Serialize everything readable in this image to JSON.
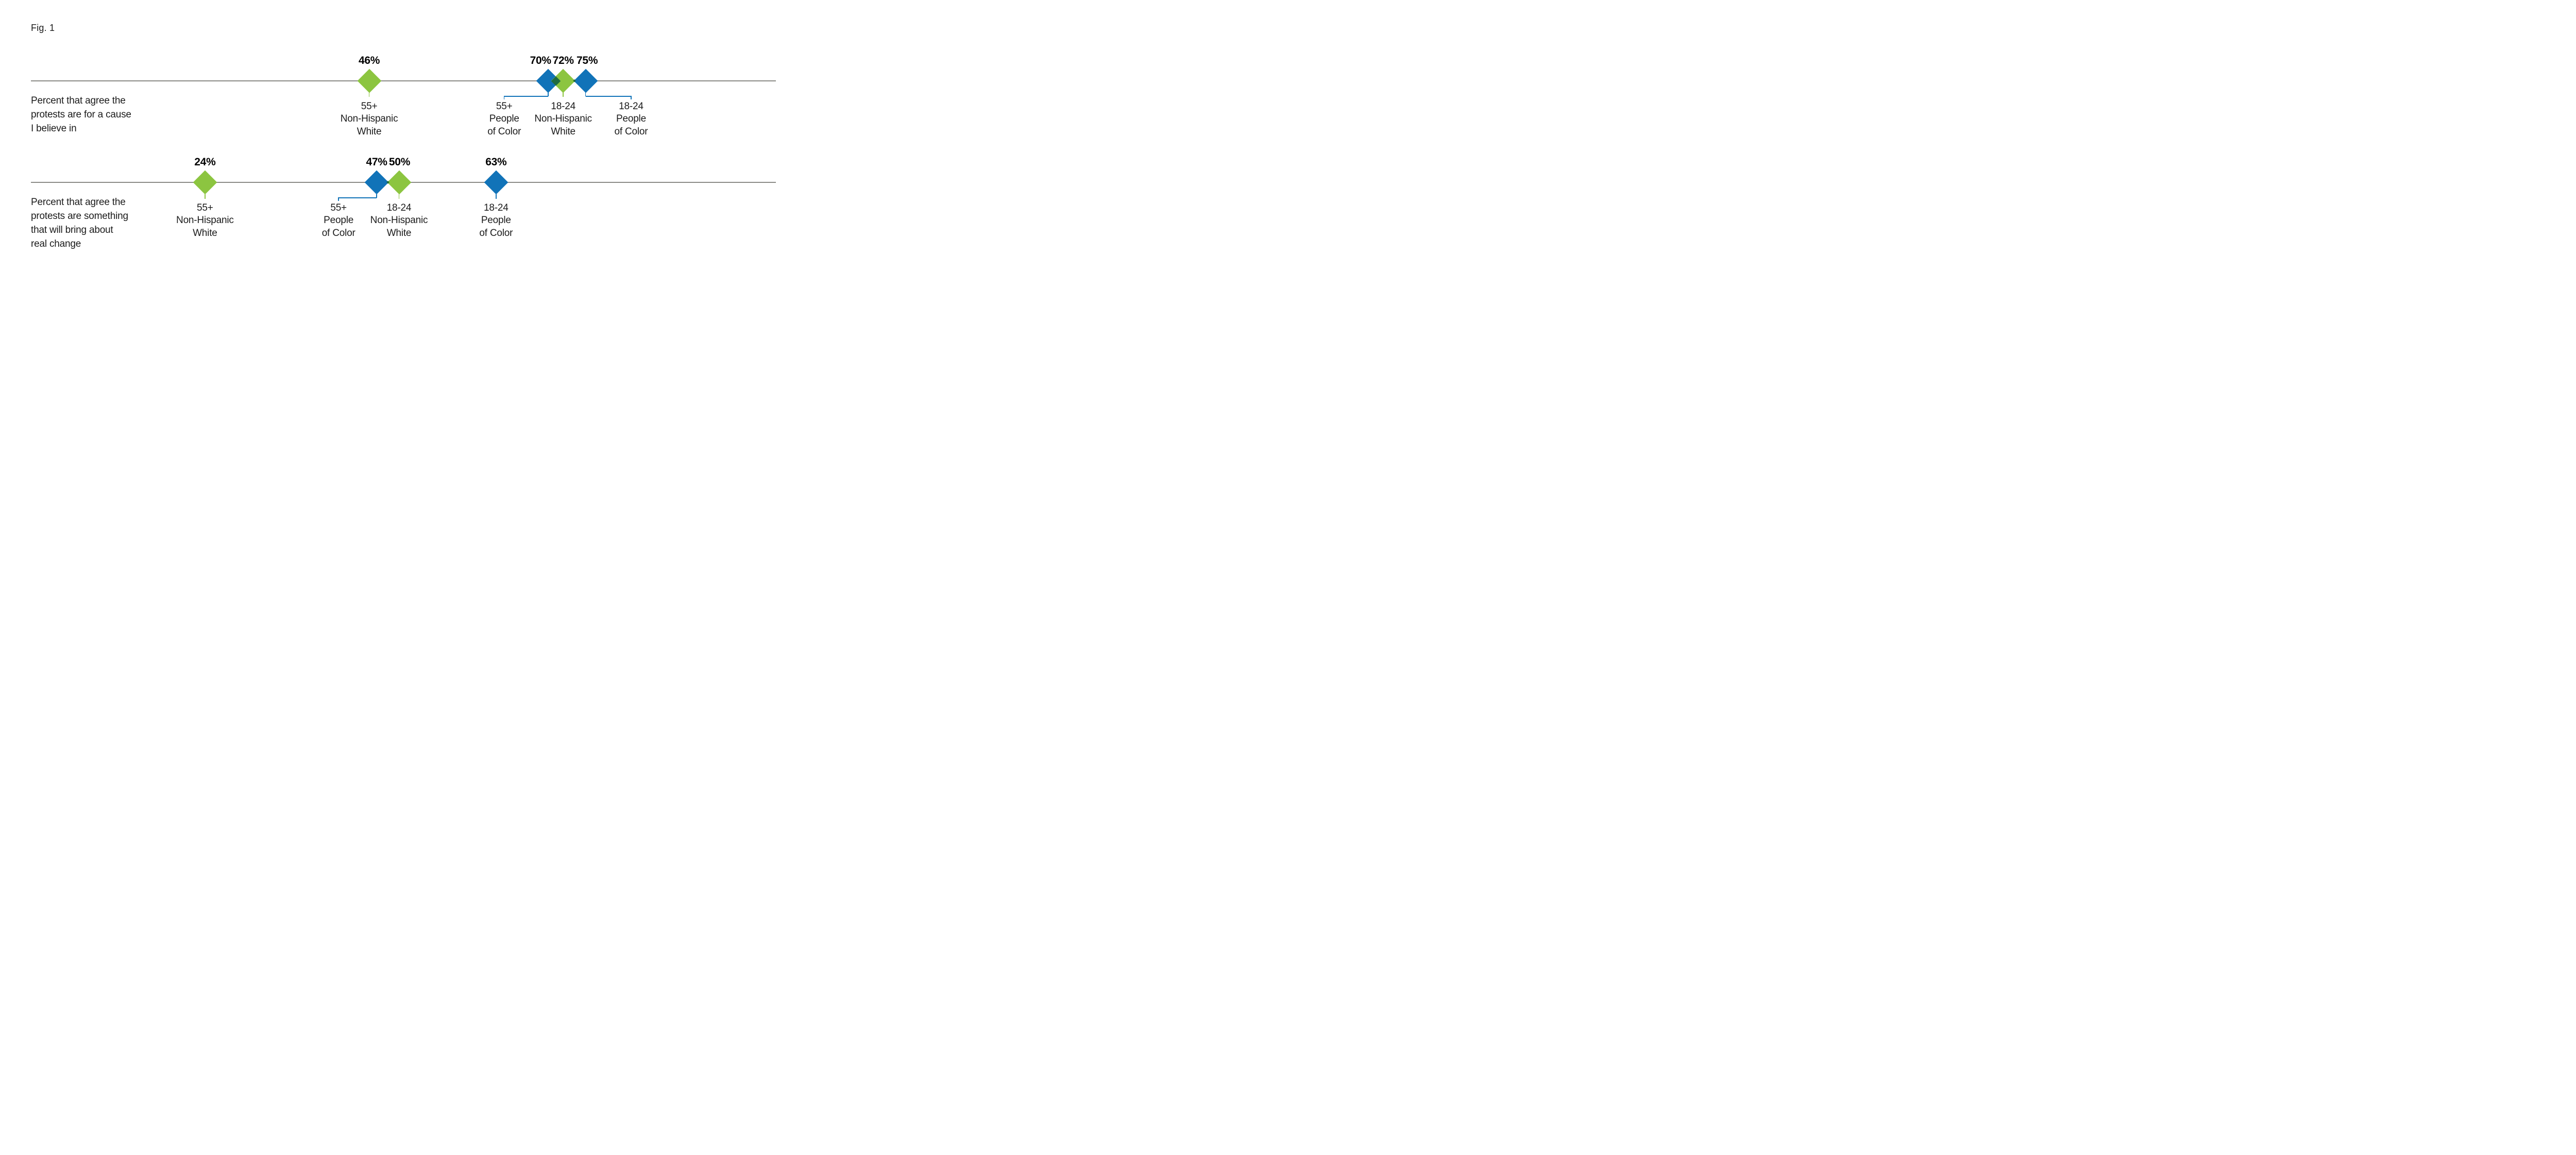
{
  "figure_label": "Fig. 1",
  "colors": {
    "green": "#8CC540",
    "blue": "#1173B8",
    "overlap": "#1F6B41",
    "axis_line": "#8B8B86",
    "text": "#1B1B1B"
  },
  "chart_data": {
    "type": "scatter",
    "marker": "diamond",
    "title": "Fig. 1",
    "axis": {
      "min": 0,
      "max": 100,
      "ticks_visible": false,
      "line_visible": true
    },
    "legend_implied": [
      {
        "label": "Non-Hispanic White",
        "color_key": "green"
      },
      {
        "label": "People of Color",
        "color_key": "blue"
      }
    ],
    "rows": [
      {
        "description_lines": [
          "Percent that agree the",
          "protests are for a cause",
          "I believe in"
        ],
        "points": [
          {
            "value": 46,
            "label": "46%",
            "color_key": "green",
            "group_lines": [
              "55+",
              "Non-Hispanic",
              "White"
            ],
            "leader": "straight"
          },
          {
            "value": 70,
            "label": "70%",
            "color_key": "blue",
            "group_lines": [
              "55+",
              "People",
              "of Color"
            ],
            "leader": "elbow",
            "group_center_value": 64.1,
            "label_dx": -15
          },
          {
            "value": 72,
            "label": "72%",
            "color_key": "green",
            "group_lines": [
              "18-24",
              "Non-Hispanic",
              "White"
            ],
            "leader": "straight"
          },
          {
            "value": 75,
            "label": "75%",
            "color_key": "blue",
            "group_lines": [
              "18-24",
              "People",
              "of Color"
            ],
            "leader": "elbow",
            "group_center_value": 81.1,
            "label_dx": 3
          }
        ]
      },
      {
        "description_lines": [
          "Percent that agree the",
          "protests are something",
          "that will bring about",
          "real change"
        ],
        "points": [
          {
            "value": 24,
            "label": "24%",
            "color_key": "green",
            "group_lines": [
              "55+",
              "Non-Hispanic",
              "White"
            ],
            "leader": "straight"
          },
          {
            "value": 47,
            "label": "47%",
            "color_key": "blue",
            "group_lines": [
              "55+",
              "People",
              "of Color"
            ],
            "leader": "elbow",
            "group_center_value": 41.9
          },
          {
            "value": 50,
            "label": "50%",
            "color_key": "green",
            "group_lines": [
              "18-24",
              "Non-Hispanic",
              "White"
            ],
            "leader": "straight",
            "label_dx": 1
          },
          {
            "value": 63,
            "label": "63%",
            "color_key": "blue",
            "group_lines": [
              "18-24",
              "People",
              "of Color"
            ],
            "leader": "straight"
          }
        ]
      }
    ]
  }
}
